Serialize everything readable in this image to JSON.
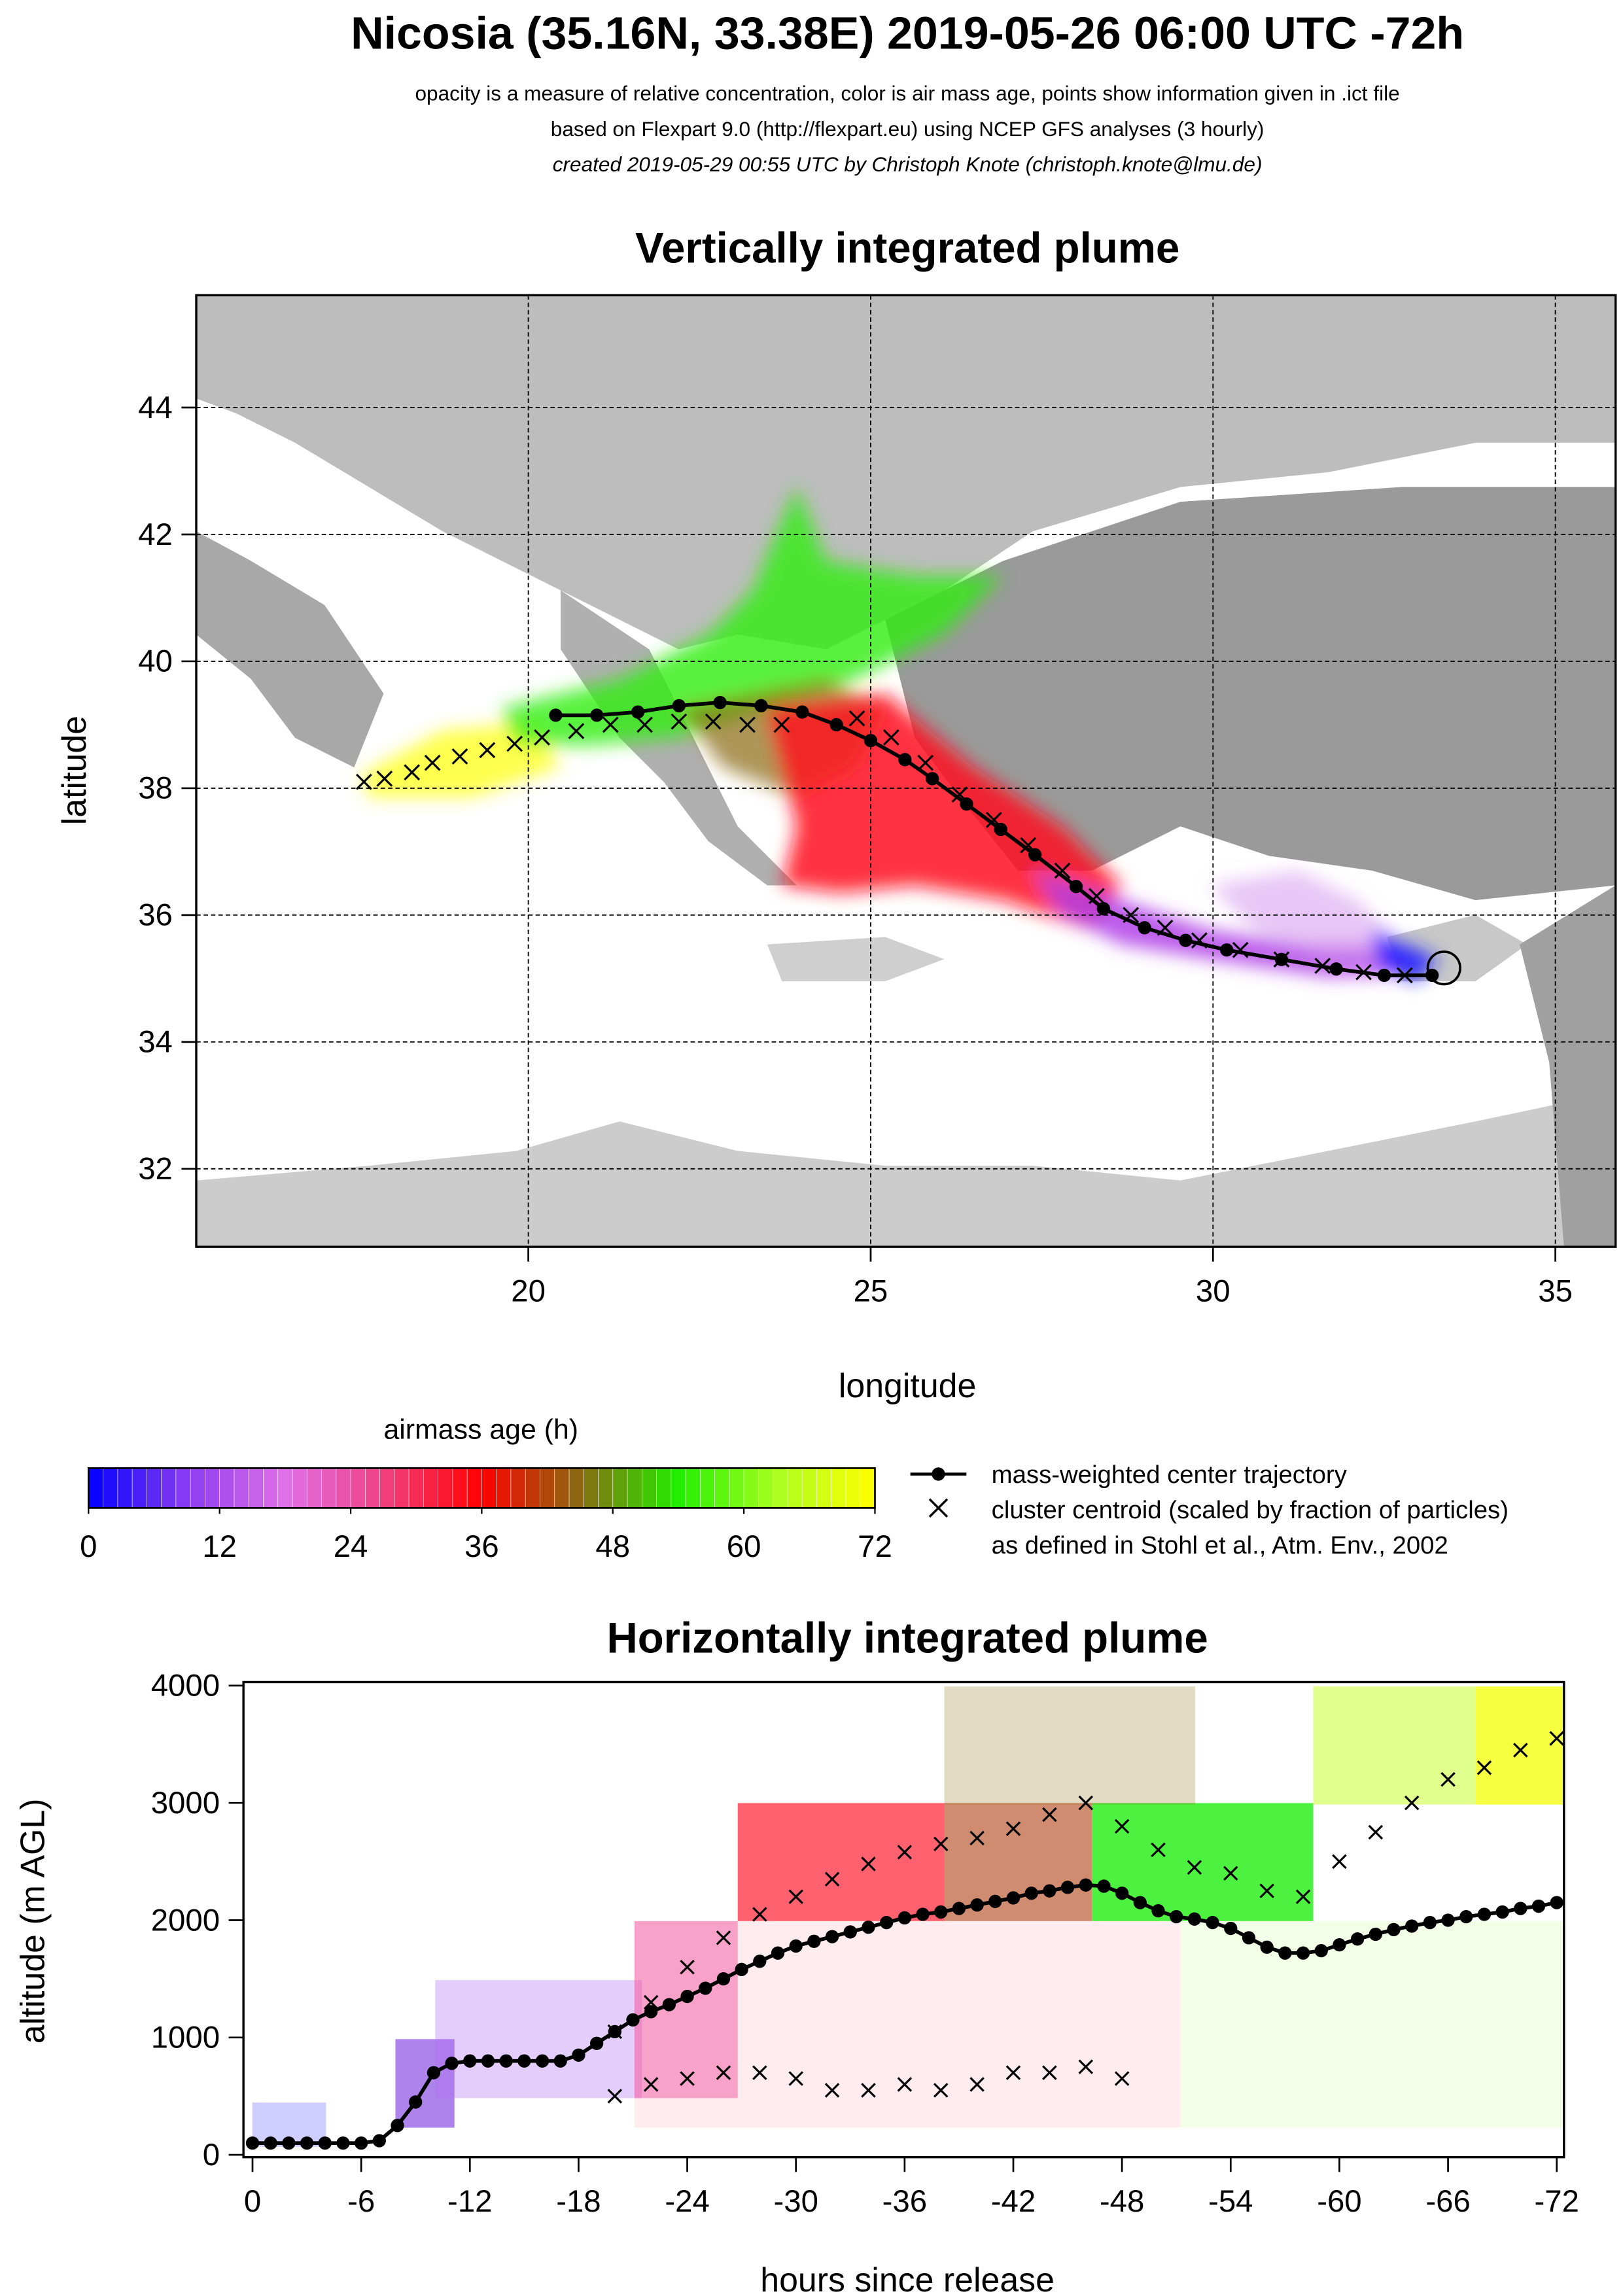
{
  "header": {
    "title": "Nicosia (35.16N, 33.38E) 2019-05-26 06:00 UTC -72h",
    "lines": [
      "opacity is a measure of relative concentration, color is air mass age, points show information given in .ict file",
      "based on Flexpart 9.0 (http://flexpart.eu) using NCEP GFS analyses (3 hourly)",
      "created 2019-05-29 00:55 UTC by Christoph Knote (christoph.knote@lmu.de)"
    ]
  },
  "chart_data": [
    {
      "type": "line",
      "title": "Vertically integrated plume",
      "x_label": "longitude",
      "y_label": "latitude",
      "xlim": [
        15.15,
        35.88
      ],
      "ylim": [
        30.77,
        45.77
      ],
      "xticks": [
        20,
        25,
        30,
        35
      ],
      "yticks": [
        32,
        34,
        36,
        38,
        40,
        42,
        44
      ],
      "grid": true,
      "series": [
        {
          "name": "mass-weighted center trajectory",
          "color": "#000000",
          "marker": "dot",
          "x": [
            33.2,
            32.5,
            31.8,
            31.0,
            30.2,
            29.6,
            29.0,
            28.4,
            28.0,
            27.4,
            26.9,
            26.4,
            25.9,
            25.5,
            25.0,
            24.5,
            24.0,
            23.4,
            22.8,
            22.2,
            21.6,
            21.0,
            20.4
          ],
          "y": [
            35.05,
            35.05,
            35.15,
            35.3,
            35.45,
            35.6,
            35.8,
            36.1,
            36.45,
            36.95,
            37.35,
            37.75,
            38.15,
            38.45,
            38.75,
            39.0,
            39.2,
            39.3,
            39.35,
            39.3,
            39.2,
            39.15,
            39.15
          ]
        },
        {
          "name": "cluster centroid (scaled by fraction of particles)",
          "color": "#000000",
          "marker": "x",
          "x": [
            17.6,
            17.9,
            18.3,
            18.6,
            19.0,
            19.4,
            19.8,
            20.2,
            20.7,
            21.2,
            21.7,
            22.2,
            22.7,
            23.2,
            23.7,
            24.8,
            25.3,
            25.8,
            26.3,
            26.8,
            27.3,
            27.8,
            28.3,
            28.8,
            29.3,
            29.8,
            30.4,
            31.0,
            31.6,
            32.2,
            32.8
          ],
          "y": [
            38.1,
            38.15,
            38.25,
            38.4,
            38.5,
            38.6,
            38.7,
            38.8,
            38.9,
            39.0,
            39.0,
            39.05,
            39.05,
            39.0,
            39.0,
            39.1,
            38.8,
            38.4,
            37.9,
            37.5,
            37.1,
            36.7,
            36.3,
            36.0,
            35.8,
            35.6,
            35.45,
            35.3,
            35.2,
            35.1,
            35.05
          ]
        }
      ],
      "legend_note": "as defined in Stohl et al., Atm. Env., 2002"
    },
    {
      "type": "colorbar",
      "title": "airmass age (h)",
      "xlim": [
        0,
        72
      ],
      "xticks": [
        0,
        12,
        24,
        36,
        48,
        60,
        72
      ],
      "colors": [
        "#0000ff",
        "#8a3cf0",
        "#e070e8",
        "#f04080",
        "#ff0000",
        "#8a6a10",
        "#22ee00",
        "#aaff20",
        "#ffff00"
      ]
    },
    {
      "type": "line",
      "title": "Horizontally integrated plume",
      "x_label": "hours since release",
      "y_label": "altitude (m AGL)",
      "xlim": [
        0.5,
        -72.4
      ],
      "ylim": [
        -20,
        4030
      ],
      "xticks": [
        0,
        -6,
        -12,
        -18,
        -24,
        -30,
        -36,
        -42,
        -48,
        -54,
        -60,
        -66,
        -72
      ],
      "yticks": [
        0,
        1000,
        2000,
        3000,
        4000
      ],
      "series": [
        {
          "color": "#000000",
          "marker": "dot",
          "x": [
            0,
            -1,
            -2,
            -3,
            -4,
            -5,
            -6,
            -7,
            -8,
            -9,
            -10,
            -11,
            -12,
            -13,
            -14,
            -15,
            -16,
            -17,
            -18,
            -19,
            -20,
            -21,
            -22,
            -23,
            -24,
            -25,
            -26,
            -27,
            -28,
            -29,
            -30,
            -31,
            -32,
            -33,
            -34,
            -35,
            -36,
            -37,
            -38,
            -39,
            -40,
            -41,
            -42,
            -43,
            -44,
            -45,
            -46,
            -47,
            -48,
            -49,
            -50,
            -51,
            -52,
            -53,
            -54,
            -55,
            -56,
            -57,
            -58,
            -59,
            -60,
            -61,
            -62,
            -63,
            -64,
            -65,
            -66,
            -67,
            -68,
            -69,
            -70,
            -71,
            -72
          ],
          "y": [
            100,
            100,
            100,
            100,
            100,
            100,
            100,
            120,
            250,
            450,
            700,
            780,
            800,
            800,
            800,
            800,
            800,
            800,
            850,
            950,
            1050,
            1150,
            1220,
            1280,
            1350,
            1420,
            1500,
            1580,
            1650,
            1720,
            1780,
            1820,
            1860,
            1900,
            1940,
            1980,
            2020,
            2050,
            2070,
            2100,
            2130,
            2160,
            2190,
            2230,
            2250,
            2280,
            2300,
            2290,
            2230,
            2150,
            2080,
            2030,
            2010,
            1980,
            1930,
            1850,
            1770,
            1720,
            1720,
            1740,
            1790,
            1840,
            1880,
            1920,
            1950,
            1980,
            2000,
            2030,
            2050,
            2070,
            2100,
            2120,
            2150
          ]
        },
        {
          "color": "#000000",
          "marker": "x",
          "x": [
            -20,
            -22,
            -24,
            -26,
            -28,
            -30,
            -32,
            -34,
            -36,
            -38,
            -40,
            -42,
            -44,
            -46,
            -48,
            -50,
            -52,
            -54,
            -56,
            -58,
            -60,
            -62,
            -64,
            -66,
            -68,
            -70,
            -72
          ],
          "y": [
            1050,
            1300,
            1600,
            1850,
            2050,
            2200,
            2350,
            2480,
            2580,
            2650,
            2700,
            2780,
            2900,
            3000,
            2800,
            2600,
            2450,
            2400,
            2250,
            2200,
            2500,
            2750,
            3000,
            3200,
            3300,
            3450,
            3550
          ]
        },
        {
          "color": "#000000",
          "marker": "x",
          "x": [
            -20,
            -22,
            -24,
            -26,
            -28,
            -30,
            -32,
            -34,
            -36,
            -38,
            -40,
            -42,
            -44,
            -46,
            -48
          ],
          "y": [
            500,
            600,
            650,
            700,
            700,
            650,
            550,
            550,
            600,
            550,
            600,
            700,
            700,
            750,
            650
          ]
        }
      ]
    }
  ]
}
